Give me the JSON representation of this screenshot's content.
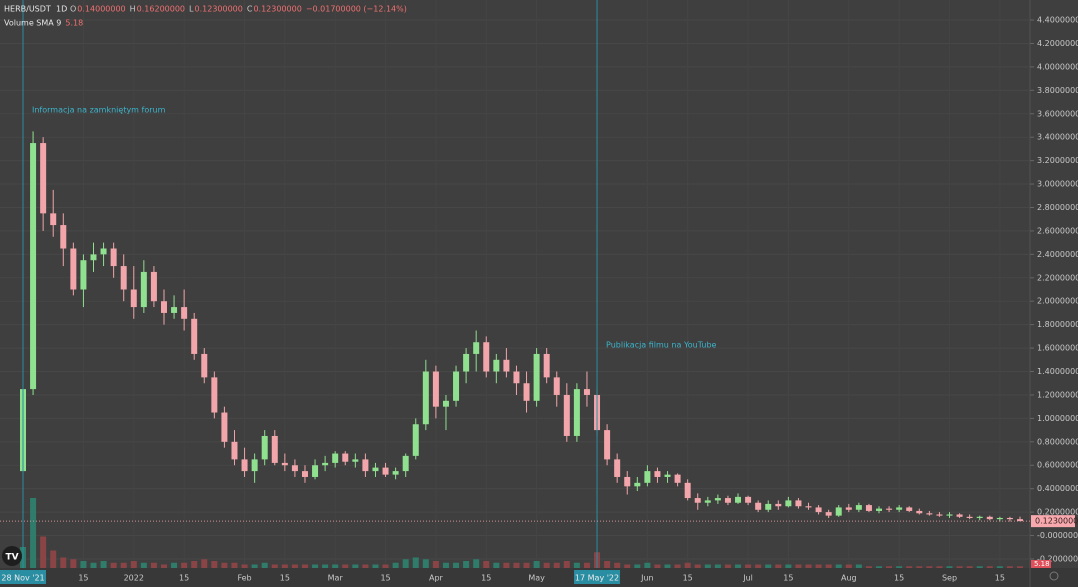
{
  "header": {
    "symbol": "HERB/USDT",
    "interval": "1D",
    "ohlc": [
      {
        "key": "O",
        "value": "0.14000000"
      },
      {
        "key": "H",
        "value": "0.16200000"
      },
      {
        "key": "L",
        "value": "0.12300000"
      },
      {
        "key": "C",
        "value": "0.12300000"
      }
    ],
    "change": "−0.01700000 (−12.14%)",
    "volume_indicator": {
      "name": "Volume SMA 9",
      "value": "5.18"
    }
  },
  "chart_data": {
    "type": "candlestick",
    "categories": [
      "28 Nov '21",
      null,
      null,
      null,
      null,
      null,
      "15",
      null,
      null,
      null,
      null,
      "2022",
      null,
      null,
      null,
      null,
      "15",
      null,
      null,
      null,
      null,
      null,
      "Feb",
      null,
      null,
      null,
      "15",
      null,
      null,
      null,
      null,
      "Mar",
      null,
      null,
      null,
      null,
      "15",
      null,
      null,
      null,
      null,
      "Apr",
      null,
      null,
      null,
      null,
      "15",
      null,
      null,
      null,
      null,
      "May",
      null,
      null,
      null,
      null,
      null,
      "17 May '22",
      null,
      null,
      null,
      null,
      "Jun",
      null,
      null,
      null,
      "15",
      null,
      null,
      null,
      null,
      null,
      "Jul",
      null,
      null,
      null,
      "15",
      null,
      null,
      null,
      null,
      null,
      "Aug",
      null,
      null,
      null,
      null,
      "15",
      null,
      null,
      null,
      null,
      "Sep",
      null,
      null,
      null,
      null,
      "15",
      null,
      null
    ],
    "open": [
      0.55,
      1.25,
      3.35,
      2.75,
      2.65,
      2.45,
      2.1,
      2.35,
      2.4,
      2.45,
      2.3,
      2.1,
      1.95,
      2.25,
      2.0,
      1.9,
      1.95,
      1.85,
      1.55,
      1.35,
      1.05,
      0.8,
      0.65,
      0.55,
      0.65,
      0.85,
      0.62,
      0.6,
      0.55,
      0.5,
      0.6,
      0.62,
      0.7,
      0.63,
      0.65,
      0.55,
      0.58,
      0.52,
      0.55,
      0.68,
      0.95,
      1.4,
      1.1,
      1.15,
      1.4,
      1.55,
      1.65,
      1.4,
      1.5,
      1.4,
      1.3,
      1.15,
      1.55,
      1.35,
      1.2,
      0.85,
      1.25,
      1.2,
      0.9,
      0.65,
      0.5,
      0.42,
      0.45,
      0.55,
      0.5,
      0.52,
      0.45,
      0.32,
      0.28,
      0.3,
      0.32,
      0.28,
      0.33,
      0.28,
      0.22,
      0.27,
      0.25,
      0.3,
      0.25,
      0.24,
      0.2,
      0.17,
      0.24,
      0.22,
      0.26,
      0.21,
      0.23,
      0.22,
      0.24,
      0.21,
      0.19,
      0.18,
      0.17,
      0.18,
      0.16,
      0.15,
      0.16,
      0.14,
      0.15,
      0.14
    ],
    "high": [
      1.3,
      3.45,
      3.4,
      2.95,
      2.75,
      2.5,
      2.4,
      2.5,
      2.5,
      2.5,
      2.4,
      2.3,
      2.35,
      2.3,
      2.1,
      2.05,
      2.1,
      1.9,
      1.6,
      1.4,
      1.1,
      0.9,
      0.75,
      0.7,
      0.9,
      0.9,
      0.7,
      0.65,
      0.6,
      0.65,
      0.68,
      0.72,
      0.72,
      0.7,
      0.7,
      0.62,
      0.62,
      0.58,
      0.7,
      1.0,
      1.5,
      1.45,
      1.2,
      1.45,
      1.6,
      1.75,
      1.7,
      1.55,
      1.6,
      1.45,
      1.4,
      1.6,
      1.6,
      1.4,
      1.3,
      1.3,
      1.4,
      1.25,
      0.95,
      0.7,
      0.55,
      0.5,
      0.6,
      0.58,
      0.55,
      0.53,
      0.48,
      0.36,
      0.33,
      0.35,
      0.34,
      0.36,
      0.34,
      0.3,
      0.3,
      0.3,
      0.33,
      0.32,
      0.28,
      0.26,
      0.22,
      0.26,
      0.27,
      0.28,
      0.27,
      0.25,
      0.25,
      0.26,
      0.25,
      0.23,
      0.21,
      0.2,
      0.2,
      0.19,
      0.18,
      0.17,
      0.17,
      0.16,
      0.16,
      0.162
    ],
    "low": [
      0.5,
      1.2,
      2.6,
      2.55,
      2.3,
      2.05,
      1.95,
      2.25,
      2.3,
      2.2,
      2.0,
      1.85,
      1.9,
      1.95,
      1.8,
      1.85,
      1.75,
      1.5,
      1.3,
      1.0,
      0.75,
      0.6,
      0.5,
      0.45,
      0.6,
      0.6,
      0.55,
      0.5,
      0.45,
      0.48,
      0.55,
      0.58,
      0.6,
      0.58,
      0.5,
      0.5,
      0.5,
      0.48,
      0.5,
      0.65,
      0.9,
      1.0,
      0.9,
      1.1,
      1.3,
      1.4,
      1.35,
      1.3,
      1.35,
      1.2,
      1.05,
      1.1,
      1.3,
      1.1,
      0.8,
      0.8,
      1.1,
      0.85,
      0.6,
      0.45,
      0.35,
      0.38,
      0.42,
      0.45,
      0.45,
      0.42,
      0.3,
      0.22,
      0.25,
      0.27,
      0.26,
      0.27,
      0.26,
      0.2,
      0.2,
      0.22,
      0.24,
      0.23,
      0.22,
      0.18,
      0.15,
      0.16,
      0.2,
      0.2,
      0.2,
      0.19,
      0.2,
      0.2,
      0.2,
      0.18,
      0.17,
      0.16,
      0.15,
      0.15,
      0.14,
      0.13,
      0.13,
      0.12,
      0.12,
      0.123
    ],
    "close": [
      1.25,
      3.35,
      2.75,
      2.65,
      2.45,
      2.1,
      2.35,
      2.4,
      2.45,
      2.3,
      2.1,
      1.95,
      2.25,
      2.0,
      1.9,
      1.95,
      1.85,
      1.55,
      1.35,
      1.05,
      0.8,
      0.65,
      0.55,
      0.65,
      0.85,
      0.62,
      0.6,
      0.55,
      0.5,
      0.6,
      0.62,
      0.7,
      0.63,
      0.65,
      0.55,
      0.58,
      0.52,
      0.55,
      0.68,
      0.95,
      1.4,
      1.1,
      1.15,
      1.4,
      1.55,
      1.65,
      1.4,
      1.5,
      1.4,
      1.3,
      1.15,
      1.55,
      1.35,
      1.2,
      0.85,
      1.25,
      1.2,
      0.9,
      0.65,
      0.5,
      0.42,
      0.45,
      0.55,
      0.5,
      0.52,
      0.45,
      0.32,
      0.28,
      0.3,
      0.32,
      0.28,
      0.33,
      0.28,
      0.22,
      0.27,
      0.25,
      0.3,
      0.25,
      0.24,
      0.2,
      0.17,
      0.24,
      0.22,
      0.26,
      0.21,
      0.23,
      0.22,
      0.24,
      0.21,
      0.19,
      0.18,
      0.17,
      0.18,
      0.16,
      0.15,
      0.16,
      0.14,
      0.15,
      0.14,
      0.123
    ],
    "volume": [
      12,
      40,
      18,
      10,
      6,
      5,
      4,
      3,
      4,
      3,
      3,
      4,
      3,
      3,
      2,
      3,
      3,
      4,
      5,
      4,
      3,
      3,
      2,
      2,
      3,
      2,
      2,
      2,
      2,
      2,
      2,
      2,
      2,
      2,
      2,
      2,
      2,
      3,
      5,
      6,
      5,
      4,
      3,
      3,
      4,
      5,
      4,
      3,
      3,
      3,
      3,
      4,
      3,
      3,
      4,
      3,
      3,
      9,
      4,
      3,
      2,
      2,
      3,
      2,
      2,
      2,
      3,
      2,
      2,
      2,
      2,
      2,
      2,
      2,
      2,
      2,
      2,
      2,
      2,
      2,
      2,
      2,
      2,
      2,
      1,
      1,
      1,
      1,
      1,
      1,
      1,
      1,
      1,
      1,
      1,
      1,
      1,
      1,
      1,
      1
    ],
    "volume_lim": [
      0,
      40
    ],
    "up_color": "#8fe08f",
    "down_color": "#f2a5aa",
    "volume_up_color": "#2f7c6a",
    "volume_down_color": "#8a4446",
    "ylim": [
      -0.277,
      4.571
    ],
    "yticks": [
      {
        "value": -0.2,
        "label": "-0.20000000"
      },
      {
        "value": 0,
        "label": "-0.00000000"
      },
      {
        "value": 0.2,
        "label": "0.20000000"
      },
      {
        "value": 0.4,
        "label": "0.40000000"
      },
      {
        "value": 0.6,
        "label": "0.60000000"
      },
      {
        "value": 0.8,
        "label": "0.80000000"
      },
      {
        "value": 1.0,
        "label": "1.00000000"
      },
      {
        "value": 1.2,
        "label": "1.20000000"
      },
      {
        "value": 1.4,
        "label": "1.40000000"
      },
      {
        "value": 1.6,
        "label": "1.60000000"
      },
      {
        "value": 1.8,
        "label": "1.80000000"
      },
      {
        "value": 2.0,
        "label": "2.00000000"
      },
      {
        "value": 2.2,
        "label": "2.20000000"
      },
      {
        "value": 2.4,
        "label": "2.40000000"
      },
      {
        "value": 2.6,
        "label": "2.60000000"
      },
      {
        "value": 2.8,
        "label": "2.80000000"
      },
      {
        "value": 3.0,
        "label": "3.00000000"
      },
      {
        "value": 3.2,
        "label": "3.20000000"
      },
      {
        "value": 3.4,
        "label": "3.40000000"
      },
      {
        "value": 3.6,
        "label": "3.60000000"
      },
      {
        "value": 3.8,
        "label": "3.80000000"
      },
      {
        "value": 4.0,
        "label": "4.00000000"
      },
      {
        "value": 4.2,
        "label": "4.20000000"
      },
      {
        "value": 4.4,
        "label": "4.40000000"
      }
    ],
    "last_price": {
      "value": 0.123,
      "label": "0.12300000"
    },
    "grid": true,
    "annotations": [
      {
        "text": "Informacja na zamkniętym forum",
        "date": "28 Nov '21"
      },
      {
        "text": "Publikacja filmu na YouTube",
        "date": "17 May '22"
      }
    ]
  }
}
